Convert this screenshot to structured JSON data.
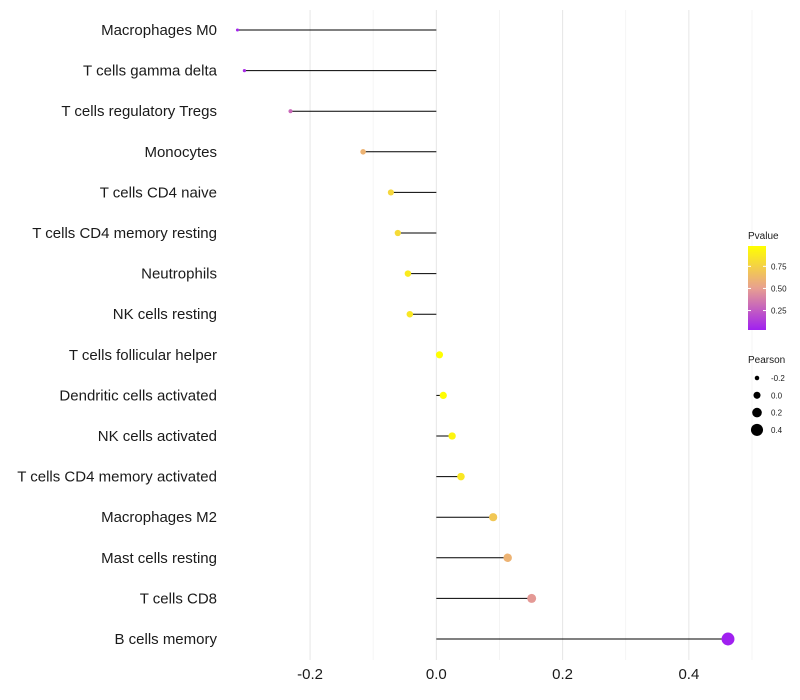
{
  "chart_data": {
    "type": "lollipop",
    "title": "",
    "xlabel": "",
    "ylabel": "",
    "xlim": [
      -0.33,
      0.5
    ],
    "x_ticks": [
      -0.2,
      0.0,
      0.2,
      0.4
    ],
    "x_tick_labels": [
      "-0.2",
      "0.0",
      "0.2",
      "0.4"
    ],
    "grid": true,
    "categories": [
      "Macrophages M0",
      "T cells gamma delta",
      "T cells regulatory  Tregs",
      "Monocytes",
      "T cells CD4 naive",
      "T cells CD4 memory resting",
      "Neutrophils",
      "NK cells resting",
      "T cells follicular helper",
      "Dendritic cells activated",
      "NK cells activated",
      "T cells CD4 memory activated",
      "Macrophages M2",
      "Mast cells resting",
      "T cells CD8",
      "B cells memory"
    ],
    "pearson": [
      -0.315,
      -0.304,
      -0.231,
      -0.116,
      -0.072,
      -0.061,
      -0.045,
      -0.042,
      0.005,
      0.011,
      0.025,
      0.039,
      0.09,
      0.113,
      0.151,
      0.462
    ],
    "pvalue": [
      0.05,
      0.08,
      0.3,
      0.6,
      0.78,
      0.8,
      0.88,
      0.86,
      0.98,
      0.97,
      0.93,
      0.86,
      0.7,
      0.6,
      0.48,
      0.03
    ],
    "legends": {
      "color": {
        "title": "Pvalue",
        "ticks": [
          0.25,
          0.5,
          0.75
        ],
        "tick_labels": [
          "0.25",
          "0.50",
          "0.75"
        ],
        "range": [
          0.03,
          0.98
        ],
        "low_color": "#a020f0",
        "mid_color": "#e8a090",
        "high_color": "#ffff00"
      },
      "size": {
        "title": "Pearson",
        "values": [
          -0.2,
          0.0,
          0.2,
          0.4
        ],
        "labels": [
          "-0.2",
          "0.0",
          "0.2",
          "0.4"
        ]
      }
    }
  }
}
